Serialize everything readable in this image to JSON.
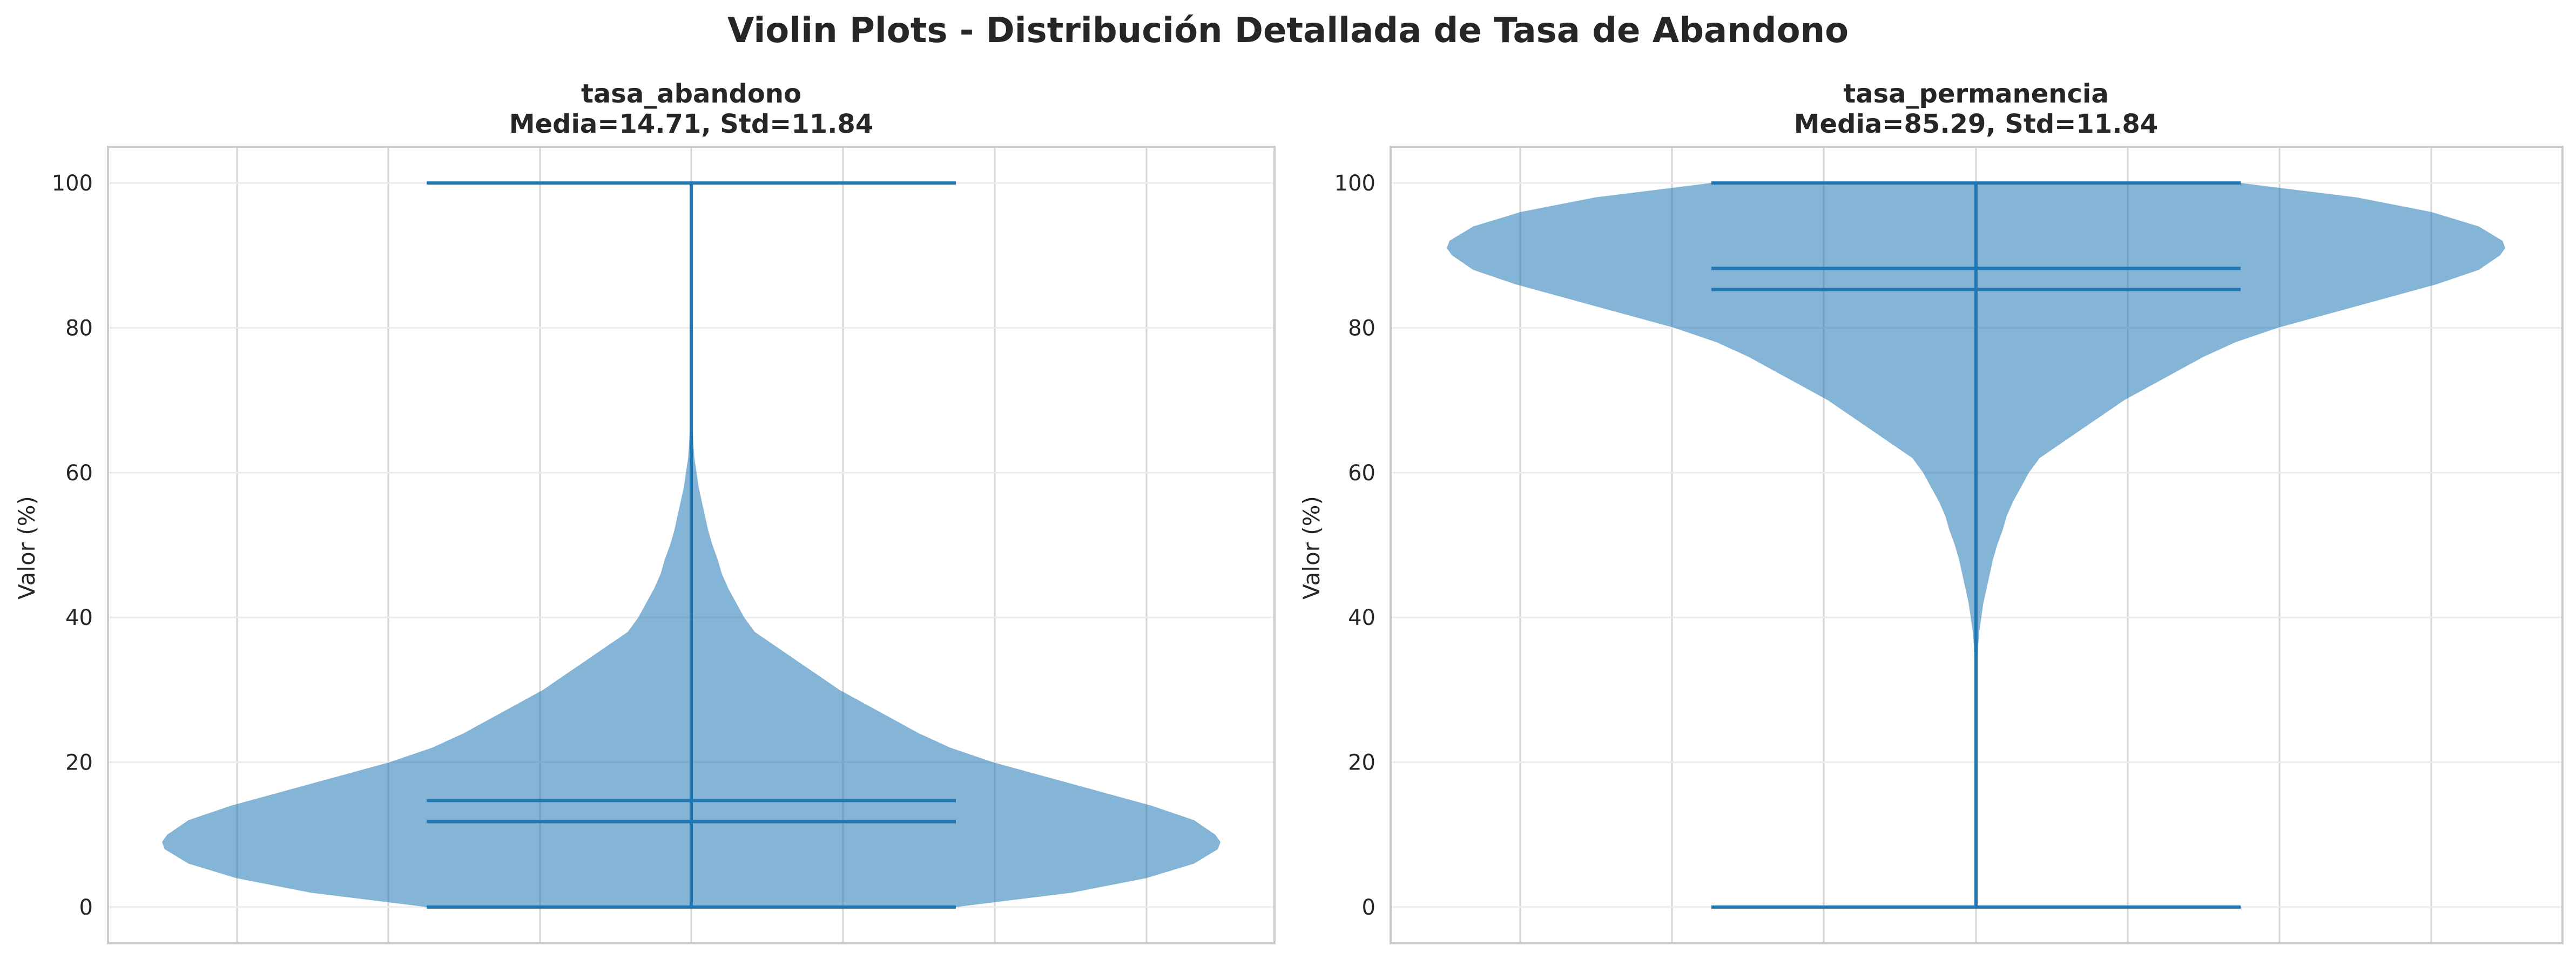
{
  "figure": {
    "suptitle": "Violin Plots - Distribución Detallada de Tasa de Abandono"
  },
  "chart_data": [
    {
      "type": "violin",
      "title_line1": "tasa_abandono",
      "title_line2": "Media=14.71, Std=11.84",
      "xlabel": "",
      "ylabel": "Valor (%)",
      "ylim": [
        -5,
        105
      ],
      "yticks": [
        0,
        20,
        40,
        60,
        80,
        100
      ],
      "grid": true,
      "color": "#1f77b4",
      "fill_opacity": 0.55,
      "stats": {
        "min": 0,
        "max": 100,
        "mean": 14.71,
        "median": 11.8
      },
      "density_profile": [
        [
          0,
          0.5
        ],
        [
          2,
          0.72
        ],
        [
          4,
          0.86
        ],
        [
          6,
          0.95
        ],
        [
          8,
          0.995
        ],
        [
          9,
          1.0
        ],
        [
          10,
          0.99
        ],
        [
          12,
          0.95
        ],
        [
          14,
          0.87
        ],
        [
          16,
          0.77
        ],
        [
          18,
          0.67
        ],
        [
          20,
          0.57
        ],
        [
          22,
          0.49
        ],
        [
          24,
          0.43
        ],
        [
          26,
          0.38
        ],
        [
          28,
          0.33
        ],
        [
          30,
          0.28
        ],
        [
          32,
          0.24
        ],
        [
          34,
          0.2
        ],
        [
          36,
          0.16
        ],
        [
          38,
          0.12
        ],
        [
          40,
          0.1
        ],
        [
          42,
          0.085
        ],
        [
          44,
          0.07
        ],
        [
          46,
          0.058
        ],
        [
          48,
          0.05
        ],
        [
          50,
          0.04
        ],
        [
          52,
          0.032
        ],
        [
          54,
          0.026
        ],
        [
          56,
          0.02
        ],
        [
          58,
          0.014
        ],
        [
          60,
          0.01
        ],
        [
          62,
          0.006
        ],
        [
          64,
          0.004
        ],
        [
          66,
          0.003
        ],
        [
          70,
          0.0025
        ],
        [
          75,
          0.002
        ],
        [
          80,
          0.0015
        ],
        [
          85,
          0.001
        ],
        [
          90,
          0.0008
        ],
        [
          95,
          0.0005
        ],
        [
          100,
          0.0003
        ]
      ]
    },
    {
      "type": "violin",
      "title_line1": "tasa_permanencia",
      "title_line2": "Media=85.29, Std=11.84",
      "xlabel": "",
      "ylabel": "Valor (%)",
      "ylim": [
        -5,
        105
      ],
      "yticks": [
        0,
        20,
        40,
        60,
        80,
        100
      ],
      "grid": true,
      "color": "#1f77b4",
      "fill_opacity": 0.55,
      "stats": {
        "min": 0,
        "max": 100,
        "mean": 85.29,
        "median": 88.2
      },
      "density_profile": [
        [
          0,
          0.0003
        ],
        [
          5,
          0.0005
        ],
        [
          10,
          0.0008
        ],
        [
          15,
          0.001
        ],
        [
          20,
          0.0015
        ],
        [
          25,
          0.002
        ],
        [
          30,
          0.0025
        ],
        [
          34,
          0.003
        ],
        [
          36,
          0.004
        ],
        [
          38,
          0.006
        ],
        [
          40,
          0.01
        ],
        [
          42,
          0.014
        ],
        [
          44,
          0.02
        ],
        [
          46,
          0.026
        ],
        [
          48,
          0.032
        ],
        [
          50,
          0.04
        ],
        [
          52,
          0.05
        ],
        [
          54,
          0.058
        ],
        [
          56,
          0.07
        ],
        [
          58,
          0.085
        ],
        [
          60,
          0.1
        ],
        [
          62,
          0.12
        ],
        [
          64,
          0.16
        ],
        [
          66,
          0.2
        ],
        [
          68,
          0.24
        ],
        [
          70,
          0.28
        ],
        [
          72,
          0.33
        ],
        [
          74,
          0.38
        ],
        [
          76,
          0.43
        ],
        [
          78,
          0.49
        ],
        [
          80,
          0.57
        ],
        [
          82,
          0.67
        ],
        [
          84,
          0.77
        ],
        [
          86,
          0.87
        ],
        [
          88,
          0.95
        ],
        [
          90,
          0.99
        ],
        [
          91,
          1.0
        ],
        [
          92,
          0.995
        ],
        [
          94,
          0.95
        ],
        [
          96,
          0.86
        ],
        [
          98,
          0.72
        ],
        [
          100,
          0.5
        ]
      ]
    }
  ]
}
